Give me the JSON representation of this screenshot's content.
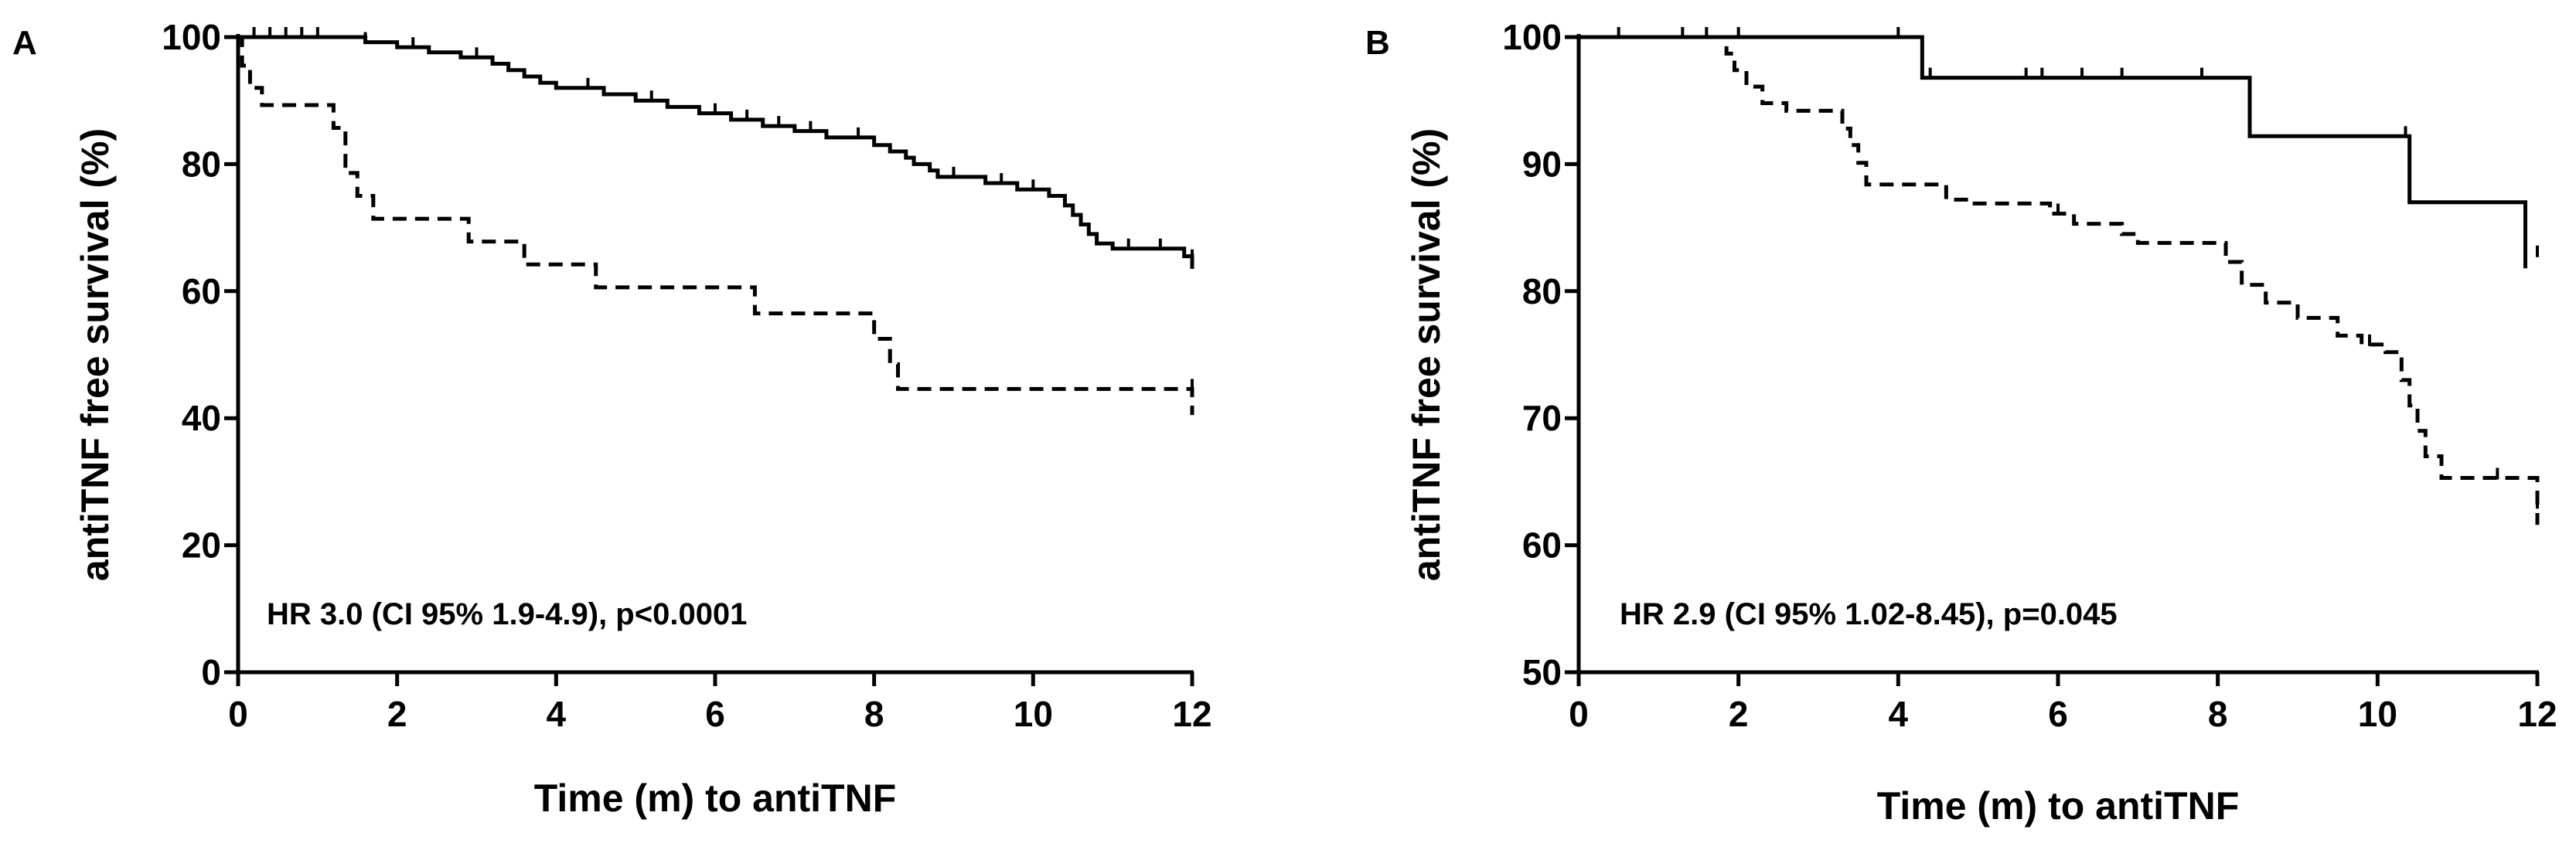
{
  "chart_data": [
    {
      "type": "line",
      "panel": "A",
      "xlabel": "Time (m) to antiTNF",
      "ylabel": "antiTNF free survival (%)",
      "xlim": [
        0,
        12
      ],
      "ylim": [
        0,
        100
      ],
      "xticks": [
        0,
        2,
        4,
        6,
        8,
        10,
        12
      ],
      "yticks": [
        0,
        20,
        40,
        60,
        80,
        100
      ],
      "annotation": "HR 3.0 (CI 95% 1.9-4.9), p<0.0001",
      "grid": false,
      "series": [
        {
          "style": "solid",
          "steps": [
            [
              0,
              100
            ],
            [
              1.6,
              99.2
            ],
            [
              2.0,
              98.4
            ],
            [
              2.4,
              97.6
            ],
            [
              2.8,
              96.8
            ],
            [
              3.2,
              95.8
            ],
            [
              3.4,
              94.8
            ],
            [
              3.6,
              93.8
            ],
            [
              3.8,
              92.8
            ],
            [
              4.0,
              92.0
            ],
            [
              4.6,
              91.0
            ],
            [
              5.0,
              90.0
            ],
            [
              5.4,
              89.0
            ],
            [
              5.8,
              88.0
            ],
            [
              6.2,
              87.0
            ],
            [
              6.6,
              86.0
            ],
            [
              7.0,
              85.2
            ],
            [
              7.4,
              84.2
            ],
            [
              8.0,
              83.0
            ],
            [
              8.2,
              82.0
            ],
            [
              8.4,
              81.0
            ],
            [
              8.5,
              80.0
            ],
            [
              8.7,
              79.0
            ],
            [
              8.8,
              78.0
            ],
            [
              9.4,
              77.0
            ],
            [
              9.8,
              76.0
            ],
            [
              10.2,
              75.0
            ],
            [
              10.4,
              73.5
            ],
            [
              10.5,
              72.0
            ],
            [
              10.6,
              70.5
            ],
            [
              10.7,
              69.0
            ],
            [
              10.8,
              67.5
            ],
            [
              11.0,
              66.7
            ],
            [
              11.9,
              65.5
            ],
            [
              12.0,
              63.5
            ]
          ],
          "censored": [
            [
              0.2,
              100
            ],
            [
              0.4,
              100
            ],
            [
              0.6,
              100
            ],
            [
              0.8,
              100
            ],
            [
              1.0,
              100
            ],
            [
              1.6,
              99.2
            ],
            [
              2.2,
              98.4
            ],
            [
              3.0,
              96.8
            ],
            [
              4.4,
              92.0
            ],
            [
              5.2,
              90.0
            ],
            [
              6.0,
              88.0
            ],
            [
              6.4,
              87.0
            ],
            [
              6.8,
              86.0
            ],
            [
              7.2,
              85.2
            ],
            [
              7.8,
              84.2
            ],
            [
              9.0,
              78.0
            ],
            [
              9.6,
              77.0
            ],
            [
              10.0,
              76.0
            ],
            [
              11.2,
              66.7
            ],
            [
              11.6,
              66.7
            ],
            [
              12.0,
              65.0
            ]
          ]
        },
        {
          "style": "dashed",
          "steps": [
            [
              0,
              100
            ],
            [
              0.05,
              95.5
            ],
            [
              0.15,
              92.0
            ],
            [
              0.3,
              89.3
            ],
            [
              1.2,
              85.7
            ],
            [
              1.35,
              78.6
            ],
            [
              1.5,
              75.0
            ],
            [
              1.7,
              71.4
            ],
            [
              2.9,
              67.8
            ],
            [
              3.6,
              64.2
            ],
            [
              4.5,
              60.6
            ],
            [
              6.5,
              56.5
            ],
            [
              8.0,
              52.5
            ],
            [
              8.2,
              48.5
            ],
            [
              8.3,
              44.6
            ],
            [
              12.0,
              40.5
            ]
          ],
          "censored": [
            [
              12.0,
              44.6
            ]
          ]
        }
      ]
    },
    {
      "type": "line",
      "panel": "B",
      "xlabel": "Time (m) to antiTNF",
      "ylabel": "antiTNF free survival (%)",
      "xlim": [
        0,
        12
      ],
      "ylim": [
        50,
        100
      ],
      "xticks": [
        0,
        2,
        4,
        6,
        8,
        10,
        12
      ],
      "yticks": [
        50,
        60,
        70,
        80,
        90,
        100
      ],
      "annotation": "HR 2.9 (CI 95% 1.02-8.45), p=0.045",
      "grid": false,
      "series": [
        {
          "style": "solid",
          "steps": [
            [
              0,
              100
            ],
            [
              4.3,
              96.8
            ],
            [
              8.4,
              92.2
            ],
            [
              10.4,
              87.0
            ],
            [
              11.85,
              81.8
            ]
          ],
          "censored": [
            [
              0.5,
              100
            ],
            [
              1.3,
              100
            ],
            [
              1.6,
              100
            ],
            [
              2.0,
              100
            ],
            [
              4.0,
              100
            ],
            [
              4.4,
              96.8
            ],
            [
              5.6,
              96.8
            ],
            [
              5.8,
              96.8
            ],
            [
              6.3,
              96.8
            ],
            [
              6.8,
              96.8
            ],
            [
              7.8,
              96.8
            ],
            [
              10.35,
              92.2
            ],
            [
              12.0,
              82.8
            ]
          ]
        },
        {
          "style": "dashed",
          "steps": [
            [
              0,
              100
            ],
            [
              1.85,
              98.7
            ],
            [
              1.95,
              97.4
            ],
            [
              2.1,
              96.1
            ],
            [
              2.3,
              94.8
            ],
            [
              2.6,
              94.2
            ],
            [
              3.3,
              92.8
            ],
            [
              3.4,
              91.5
            ],
            [
              3.5,
              90.1
            ],
            [
              3.6,
              88.4
            ],
            [
              4.6,
              87.2
            ],
            [
              4.9,
              86.9
            ],
            [
              5.9,
              86.1
            ],
            [
              6.2,
              85.3
            ],
            [
              6.8,
              84.5
            ],
            [
              7.0,
              83.8
            ],
            [
              8.1,
              82.3
            ],
            [
              8.3,
              80.5
            ],
            [
              8.6,
              79.1
            ],
            [
              9.0,
              77.9
            ],
            [
              9.5,
              76.5
            ],
            [
              9.8,
              75.8
            ],
            [
              10.1,
              75.2
            ],
            [
              10.3,
              73.0
            ],
            [
              10.4,
              71.0
            ],
            [
              10.5,
              69.0
            ],
            [
              10.6,
              67.0
            ],
            [
              10.8,
              65.3
            ],
            [
              12.0,
              61.6
            ]
          ],
          "censored": [
            [
              6.0,
              86.1
            ],
            [
              9.9,
              75.8
            ],
            [
              11.5,
              65.3
            ],
            [
              12.0,
              63.0
            ]
          ]
        }
      ]
    }
  ]
}
